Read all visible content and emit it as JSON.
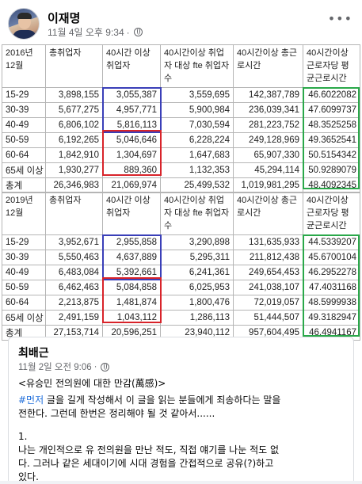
{
  "post": {
    "author": "이재명",
    "timestamp": "11월 4일 오후 9:34",
    "separator": "·",
    "more_label": "•••"
  },
  "table_2016": {
    "headers": [
      "2016년 12월",
      "총취업자",
      "40시간 이상 취업자",
      "40시간이상 취업자 대상 fte 취업자수",
      "40시간이상 총근로시간",
      "40시간이상 근로자당 평균근로시간"
    ],
    "rows": [
      [
        "15-29",
        "3,898,155",
        "3,055,387",
        "3,559,695",
        "142,387,789",
        "46.6022082"
      ],
      [
        "30-39",
        "5,677,275",
        "4,957,771",
        "5,900,984",
        "236,039,341",
        "47.6099737"
      ],
      [
        "40-49",
        "6,806,102",
        "5,816,113",
        "7,030,594",
        "281,223,752",
        "48.3525258"
      ],
      [
        "50-59",
        "6,192,265",
        "5,046,646",
        "6,228,224",
        "249,128,969",
        "49.3652541"
      ],
      [
        "60-64",
        "1,842,910",
        "1,304,697",
        "1,647,683",
        "65,907,330",
        "50.5154342"
      ],
      [
        "65세 이상",
        "1,930,277",
        "889,360",
        "1,132,353",
        "45,294,114",
        "50.9289079"
      ],
      [
        "총계",
        "26,346,983",
        "21,069,974",
        "25,499,532",
        "1,019,981,295",
        "48.4092345"
      ]
    ]
  },
  "table_2019": {
    "headers": [
      "2019년 12월",
      "총취업자",
      "40시간 이상 취업자",
      "40시간이상 취업자 대상 fte 취업자수",
      "40시간이상 총근로시간",
      "40시간이상 근로자당 평균근로시간"
    ],
    "rows": [
      [
        "15-29",
        "3,952,671",
        "2,955,858",
        "3,290,898",
        "131,635,933",
        "44.5339207"
      ],
      [
        "30-39",
        "5,550,463",
        "4,637,889",
        "5,295,311",
        "211,812,438",
        "45.6700104"
      ],
      [
        "40-49",
        "6,483,084",
        "5,392,661",
        "6,241,361",
        "249,654,453",
        "46.2952278"
      ],
      [
        "50-59",
        "6,462,463",
        "5,084,858",
        "6,025,953",
        "241,038,107",
        "47.4031168"
      ],
      [
        "60-64",
        "2,213,875",
        "1,481,874",
        "1,800,476",
        "72,019,057",
        "48.5999938"
      ],
      [
        "65세 이상",
        "2,491,159",
        "1,043,112",
        "1,286,113",
        "51,444,507",
        "49.3182947"
      ],
      [
        "총계",
        "27,153,714",
        "20,596,251",
        "23,940,112",
        "957,604,495",
        "46.4941167"
      ]
    ]
  },
  "shared_post": {
    "author": "최배근",
    "timestamp": "11월 2일 오전 9:06",
    "separator": "·",
    "title": "<유승민 전의원에 대한 만감(萬感)>",
    "hashtag": "#먼저",
    "line1_rest": " 글을 길게 작성해서 이 글을 읽는 분들에게 죄송하다는 말을",
    "line2": "전한다. 그런데 한번은 정리해야 될 것 같아서......",
    "number": "1.",
    "line3": "나는 개인적으로 유 전의원을 만난 적도, 직접 얘기를 나눈 적도 없",
    "line4": "다. 그러나 같은 세대이기에 시대 경험을 간접적으로 공유(?)하고",
    "line5": "있다."
  },
  "colors": {
    "blue_box": "#3a3fb8",
    "red_box": "#d8232a",
    "green_box": "#2aa84a",
    "hashtag": "#216fdb",
    "meta_gray": "#65676b"
  }
}
